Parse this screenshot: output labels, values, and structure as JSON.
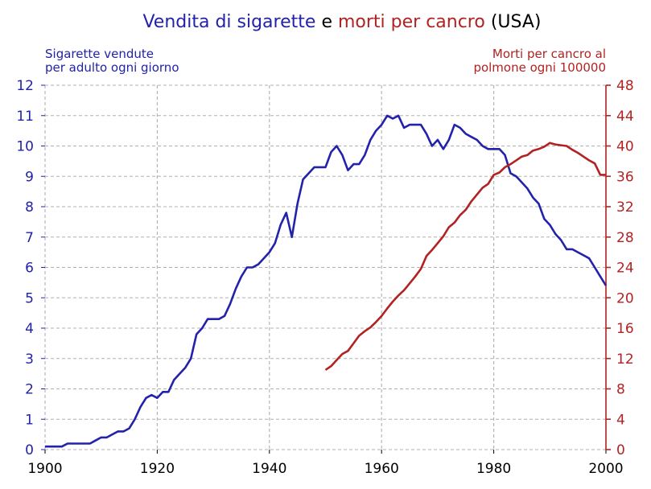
{
  "chart_data": {
    "type": "line",
    "title": {
      "part1": "Vendita di sigarette",
      "part2": "e",
      "part3": "morti per cancro",
      "part4": "(USA)"
    },
    "ylabel_left": {
      "line1": "Sigarette vendute",
      "line2": "per adulto ogni giorno"
    },
    "ylabel_right": {
      "line1": "Morti per cancro al",
      "line2": "polmone ogni 100000"
    },
    "xlim": [
      1900,
      2000
    ],
    "ylim_left": [
      0,
      12
    ],
    "ylim_right": [
      0,
      48
    ],
    "x_ticks": [
      "1900",
      "1920",
      "1940",
      "1960",
      "1980",
      "2000"
    ],
    "y_ticks_left": [
      "0",
      "1",
      "2",
      "3",
      "4",
      "5",
      "6",
      "7",
      "8",
      "9",
      "10",
      "11",
      "12"
    ],
    "y_ticks_right": [
      "0",
      "4",
      "8",
      "12",
      "16",
      "20",
      "24",
      "28",
      "32",
      "36",
      "40",
      "44",
      "48"
    ],
    "grid": true,
    "colors": {
      "cigarettes": "#2222aa",
      "deaths": "#b22222",
      "grid": "#b0b0b0",
      "title_neutral": "#000000"
    },
    "series": [
      {
        "axis": "left",
        "x": [
          1900,
          1901,
          1902,
          1903,
          1904,
          1905,
          1906,
          1907,
          1908,
          1909,
          1910,
          1911,
          1912,
          1913,
          1914,
          1915,
          1916,
          1917,
          1918,
          1919,
          1920,
          1921,
          1922,
          1923,
          1924,
          1925,
          1926,
          1927,
          1928,
          1929,
          1930,
          1931,
          1932,
          1933,
          1934,
          1935,
          1936,
          1937,
          1938,
          1939,
          1940,
          1941,
          1942,
          1943,
          1944,
          1945,
          1946,
          1947,
          1948,
          1949,
          1950,
          1951,
          1952,
          1953,
          1954,
          1955,
          1956,
          1957,
          1958,
          1959,
          1960,
          1961,
          1962,
          1963,
          1964,
          1965,
          1966,
          1967,
          1968,
          1969,
          1970,
          1971,
          1972,
          1973,
          1974,
          1975,
          1976,
          1977,
          1978,
          1979,
          1980,
          1981,
          1982,
          1983,
          1984,
          1985,
          1986,
          1987,
          1988,
          1989,
          1990,
          1991,
          1992,
          1993,
          1994,
          1995,
          1996,
          1997,
          1998,
          1999,
          2000
        ],
        "values": [
          0.1,
          0.1,
          0.1,
          0.1,
          0.2,
          0.2,
          0.2,
          0.2,
          0.2,
          0.3,
          0.4,
          0.4,
          0.5,
          0.6,
          0.6,
          0.7,
          1.0,
          1.4,
          1.7,
          1.8,
          1.7,
          1.9,
          1.9,
          2.3,
          2.5,
          2.7,
          3.0,
          3.8,
          4.0,
          4.3,
          4.3,
          4.3,
          4.4,
          4.8,
          5.3,
          5.7,
          6.0,
          6.0,
          6.1,
          6.3,
          6.5,
          6.8,
          7.4,
          7.8,
          7.0,
          8.1,
          8.9,
          9.1,
          9.3,
          9.3,
          9.3,
          9.8,
          10.0,
          9.7,
          9.2,
          9.4,
          9.4,
          9.7,
          10.2,
          10.5,
          10.7,
          11.0,
          10.9,
          11.0,
          10.6,
          10.7,
          10.7,
          10.7,
          10.4,
          10.0,
          10.2,
          9.9,
          10.2,
          10.7,
          10.6,
          10.4,
          10.3,
          10.2,
          10.0,
          9.9,
          9.9,
          9.9,
          9.7,
          9.1,
          9.0,
          8.8,
          8.6,
          8.3,
          8.1,
          7.6,
          7.4,
          7.1,
          6.9,
          6.6,
          6.6,
          6.5,
          6.4,
          6.3,
          6.0,
          5.7,
          5.4
        ]
      },
      {
        "axis": "right",
        "x": [
          1950,
          1951,
          1952,
          1953,
          1954,
          1955,
          1956,
          1957,
          1958,
          1959,
          1960,
          1961,
          1962,
          1963,
          1964,
          1965,
          1966,
          1967,
          1968,
          1969,
          1970,
          1971,
          1972,
          1973,
          1974,
          1975,
          1976,
          1977,
          1978,
          1979,
          1980,
          1981,
          1982,
          1983,
          1984,
          1985,
          1986,
          1987,
          1988,
          1989,
          1990,
          1991,
          1992,
          1993,
          1994,
          1995,
          1996,
          1997,
          1998,
          1999,
          2000
        ],
        "values": [
          10.5,
          11.0,
          11.8,
          12.6,
          13.0,
          14.0,
          15.0,
          15.6,
          16.1,
          16.8,
          17.6,
          18.6,
          19.5,
          20.3,
          21.0,
          21.9,
          22.8,
          23.8,
          25.5,
          26.3,
          27.2,
          28.1,
          29.3,
          29.9,
          30.9,
          31.6,
          32.7,
          33.6,
          34.5,
          35.0,
          36.2,
          36.5,
          37.2,
          37.6,
          38.1,
          38.6,
          38.8,
          39.4,
          39.6,
          39.9,
          40.4,
          40.2,
          40.1,
          40.0,
          39.5,
          39.1,
          38.6,
          38.1,
          37.7,
          36.2,
          36.2
        ]
      }
    ]
  }
}
